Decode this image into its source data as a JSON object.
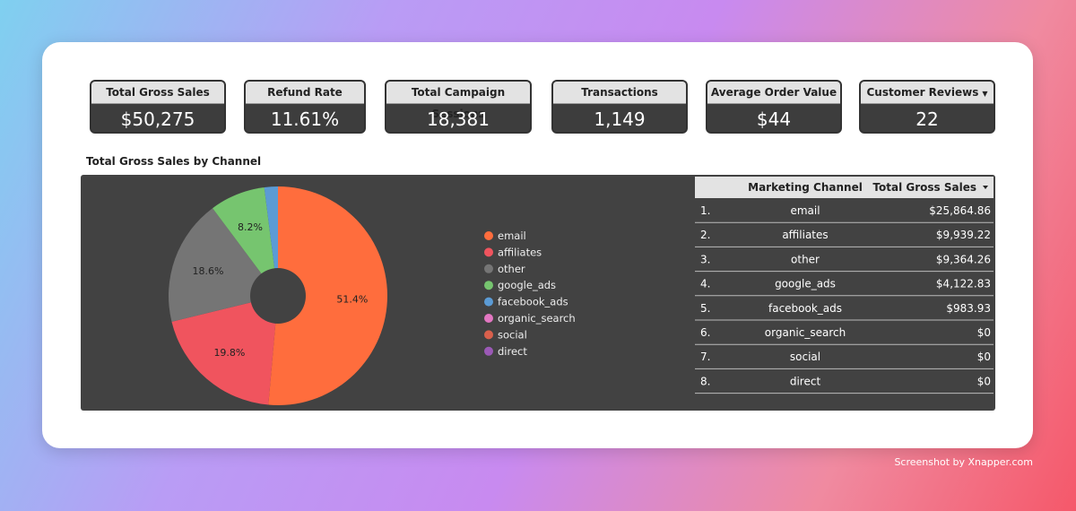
{
  "kpis": [
    {
      "label": "Total Gross Sales",
      "value": "$50,275"
    },
    {
      "label": "Refund Rate",
      "value": "11.61%"
    },
    {
      "label": "Total Campaign Sessions",
      "value": "18,381"
    },
    {
      "label": "Transactions",
      "value": "1,149"
    },
    {
      "label": "Average Order Value",
      "value": "$44"
    },
    {
      "label": "Customer Reviews",
      "value": "22"
    }
  ],
  "pie": {
    "type": "pie",
    "title": "Total Gross Sales by Channel",
    "categories": [
      "email",
      "affiliates",
      "other",
      "google_ads",
      "facebook_ads",
      "organic_search",
      "social",
      "direct"
    ],
    "values": [
      51.4,
      19.8,
      18.6,
      8.2,
      2.0,
      0,
      0,
      0
    ],
    "value_labels": [
      "51.4%",
      "19.8%",
      "18.6%",
      "8.2%",
      null,
      null,
      null,
      null
    ],
    "colors": [
      "#ff6d3d",
      "#f0545e",
      "#757575",
      "#76c56f",
      "#5b9bd5",
      "#e377c2",
      "#d9604c",
      "#9b59b6"
    ]
  },
  "table": {
    "headers": [
      "Marketing Channel",
      "Total Gross Sales"
    ],
    "rows": [
      [
        "1.",
        "email",
        "$25,864.86"
      ],
      [
        "2.",
        "affiliates",
        "$9,939.22"
      ],
      [
        "3.",
        "other",
        "$9,364.26"
      ],
      [
        "4.",
        "google_ads",
        "$4,122.83"
      ],
      [
        "5.",
        "facebook_ads",
        "$983.93"
      ],
      [
        "6.",
        "organic_search",
        "$0"
      ],
      [
        "7.",
        "social",
        "$0"
      ],
      [
        "8.",
        "direct",
        "$0"
      ]
    ]
  },
  "footer": "Screenshot by Xnapper.com"
}
